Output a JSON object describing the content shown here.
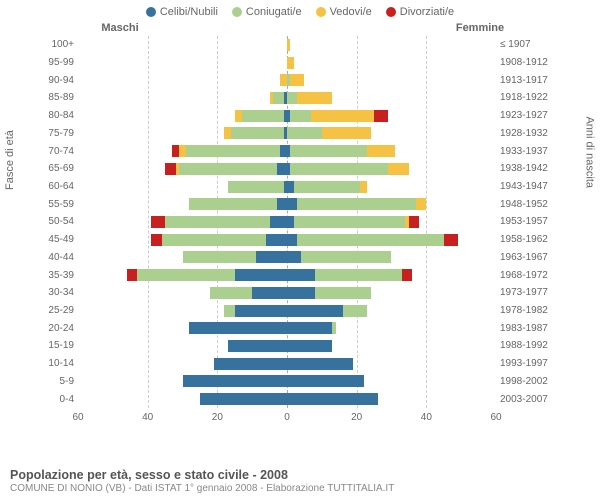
{
  "legend": [
    {
      "label": "Celibi/Nubili",
      "color": "#37719e"
    },
    {
      "label": "Coniugati/e",
      "color": "#aacf8f"
    },
    {
      "label": "Vedovi/e",
      "color": "#f6c244"
    },
    {
      "label": "Divorziati/e",
      "color": "#c8201f"
    }
  ],
  "header_left": "Maschi",
  "header_right": "Femmine",
  "ylabel_left": "Fasce di età",
  "ylabel_right": "Anni di nascita",
  "title": "Popolazione per età, sesso e stato civile - 2008",
  "subtitle": "COMUNE DI NONIO (VB) - Dati ISTAT 1° gennaio 2008 - Elaborazione TUTTITALIA.IT",
  "xmax": 60,
  "xticks": [
    60,
    40,
    20,
    0,
    20,
    40,
    60
  ],
  "rows": [
    {
      "age": "100+",
      "birth": "≤ 1907",
      "m": [
        0,
        0,
        0,
        0
      ],
      "f": [
        0,
        0,
        1,
        0
      ]
    },
    {
      "age": "95-99",
      "birth": "1908-1912",
      "m": [
        0,
        0,
        0,
        0
      ],
      "f": [
        0,
        0,
        2,
        0
      ]
    },
    {
      "age": "90-94",
      "birth": "1913-1917",
      "m": [
        0,
        0,
        2,
        0
      ],
      "f": [
        0,
        1,
        4,
        0
      ]
    },
    {
      "age": "85-89",
      "birth": "1918-1922",
      "m": [
        1,
        3,
        1,
        0
      ],
      "f": [
        0,
        3,
        10,
        0
      ]
    },
    {
      "age": "80-84",
      "birth": "1923-1927",
      "m": [
        1,
        12,
        2,
        0
      ],
      "f": [
        1,
        6,
        18,
        4
      ]
    },
    {
      "age": "75-79",
      "birth": "1928-1932",
      "m": [
        1,
        15,
        2,
        0
      ],
      "f": [
        0,
        10,
        14,
        0
      ]
    },
    {
      "age": "70-74",
      "birth": "1933-1937",
      "m": [
        2,
        27,
        2,
        2
      ],
      "f": [
        1,
        22,
        8,
        0
      ]
    },
    {
      "age": "65-69",
      "birth": "1938-1942",
      "m": [
        3,
        28,
        1,
        3
      ],
      "f": [
        1,
        28,
        6,
        0
      ]
    },
    {
      "age": "60-64",
      "birth": "1943-1947",
      "m": [
        1,
        16,
        0,
        0
      ],
      "f": [
        2,
        19,
        2,
        0
      ]
    },
    {
      "age": "55-59",
      "birth": "1948-1952",
      "m": [
        3,
        25,
        0,
        0
      ],
      "f": [
        3,
        34,
        3,
        0
      ]
    },
    {
      "age": "50-54",
      "birth": "1953-1957",
      "m": [
        5,
        30,
        0,
        4
      ],
      "f": [
        2,
        32,
        1,
        3
      ]
    },
    {
      "age": "45-49",
      "birth": "1958-1962",
      "m": [
        6,
        30,
        0,
        3
      ],
      "f": [
        3,
        42,
        0,
        4
      ]
    },
    {
      "age": "40-44",
      "birth": "1963-1967",
      "m": [
        9,
        21,
        0,
        0
      ],
      "f": [
        4,
        26,
        0,
        0
      ]
    },
    {
      "age": "35-39",
      "birth": "1968-1972",
      "m": [
        15,
        28,
        0,
        3
      ],
      "f": [
        8,
        25,
        0,
        3
      ]
    },
    {
      "age": "30-34",
      "birth": "1973-1977",
      "m": [
        10,
        12,
        0,
        0
      ],
      "f": [
        8,
        16,
        0,
        0
      ]
    },
    {
      "age": "25-29",
      "birth": "1978-1982",
      "m": [
        15,
        3,
        0,
        0
      ],
      "f": [
        16,
        7,
        0,
        0
      ]
    },
    {
      "age": "20-24",
      "birth": "1983-1987",
      "m": [
        28,
        0,
        0,
        0
      ],
      "f": [
        13,
        1,
        0,
        0
      ]
    },
    {
      "age": "15-19",
      "birth": "1988-1992",
      "m": [
        17,
        0,
        0,
        0
      ],
      "f": [
        13,
        0,
        0,
        0
      ]
    },
    {
      "age": "10-14",
      "birth": "1993-1997",
      "m": [
        21,
        0,
        0,
        0
      ],
      "f": [
        19,
        0,
        0,
        0
      ]
    },
    {
      "age": "5-9",
      "birth": "1998-2002",
      "m": [
        30,
        0,
        0,
        0
      ],
      "f": [
        22,
        0,
        0,
        0
      ]
    },
    {
      "age": "0-4",
      "birth": "2003-2007",
      "m": [
        25,
        0,
        0,
        0
      ],
      "f": [
        26,
        0,
        0,
        0
      ]
    }
  ],
  "colors": [
    "#37719e",
    "#aacf8f",
    "#f6c244",
    "#c8201f"
  ],
  "grid_color": "#cccccc",
  "text_color": "#666666"
}
